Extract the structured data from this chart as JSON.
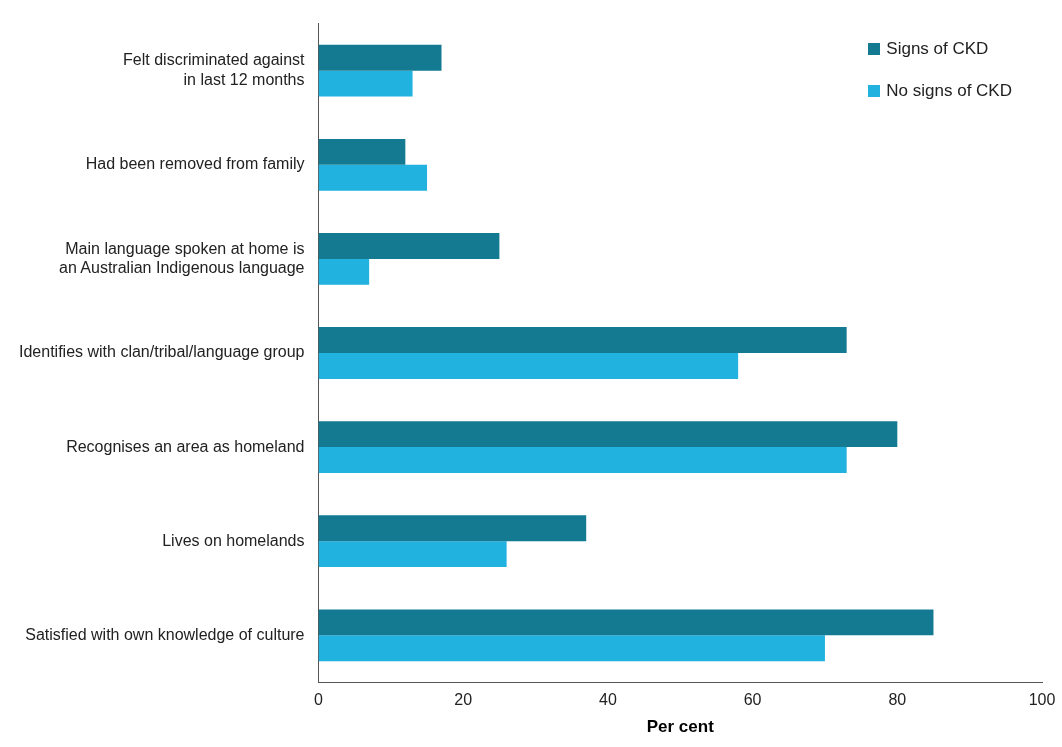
{
  "chart_data": {
    "type": "bar",
    "orientation": "horizontal",
    "categories": [
      "Felt discriminated against\nin last 12 months",
      "Had been removed from family",
      "Main language spoken at home is\nan Australian Indigenous language",
      "Identifies with clan/tribal/language group",
      "Recognises an area as homeland",
      "Lives on homelands",
      "Satisfied with own knowledge of culture"
    ],
    "series": [
      {
        "name": "Signs of CKD",
        "color": "#137a92",
        "values": [
          17,
          12,
          25,
          73,
          80,
          37,
          85
        ]
      },
      {
        "name": "No signs of CKD",
        "color": "#21b2e0",
        "values": [
          13,
          15,
          7,
          58,
          73,
          26,
          70
        ]
      }
    ],
    "xlabel": "Per cent",
    "xlim": [
      0,
      100
    ],
    "xticks": [
      0,
      20,
      40,
      60,
      80,
      100
    ],
    "grid": false,
    "legend": "top right"
  }
}
